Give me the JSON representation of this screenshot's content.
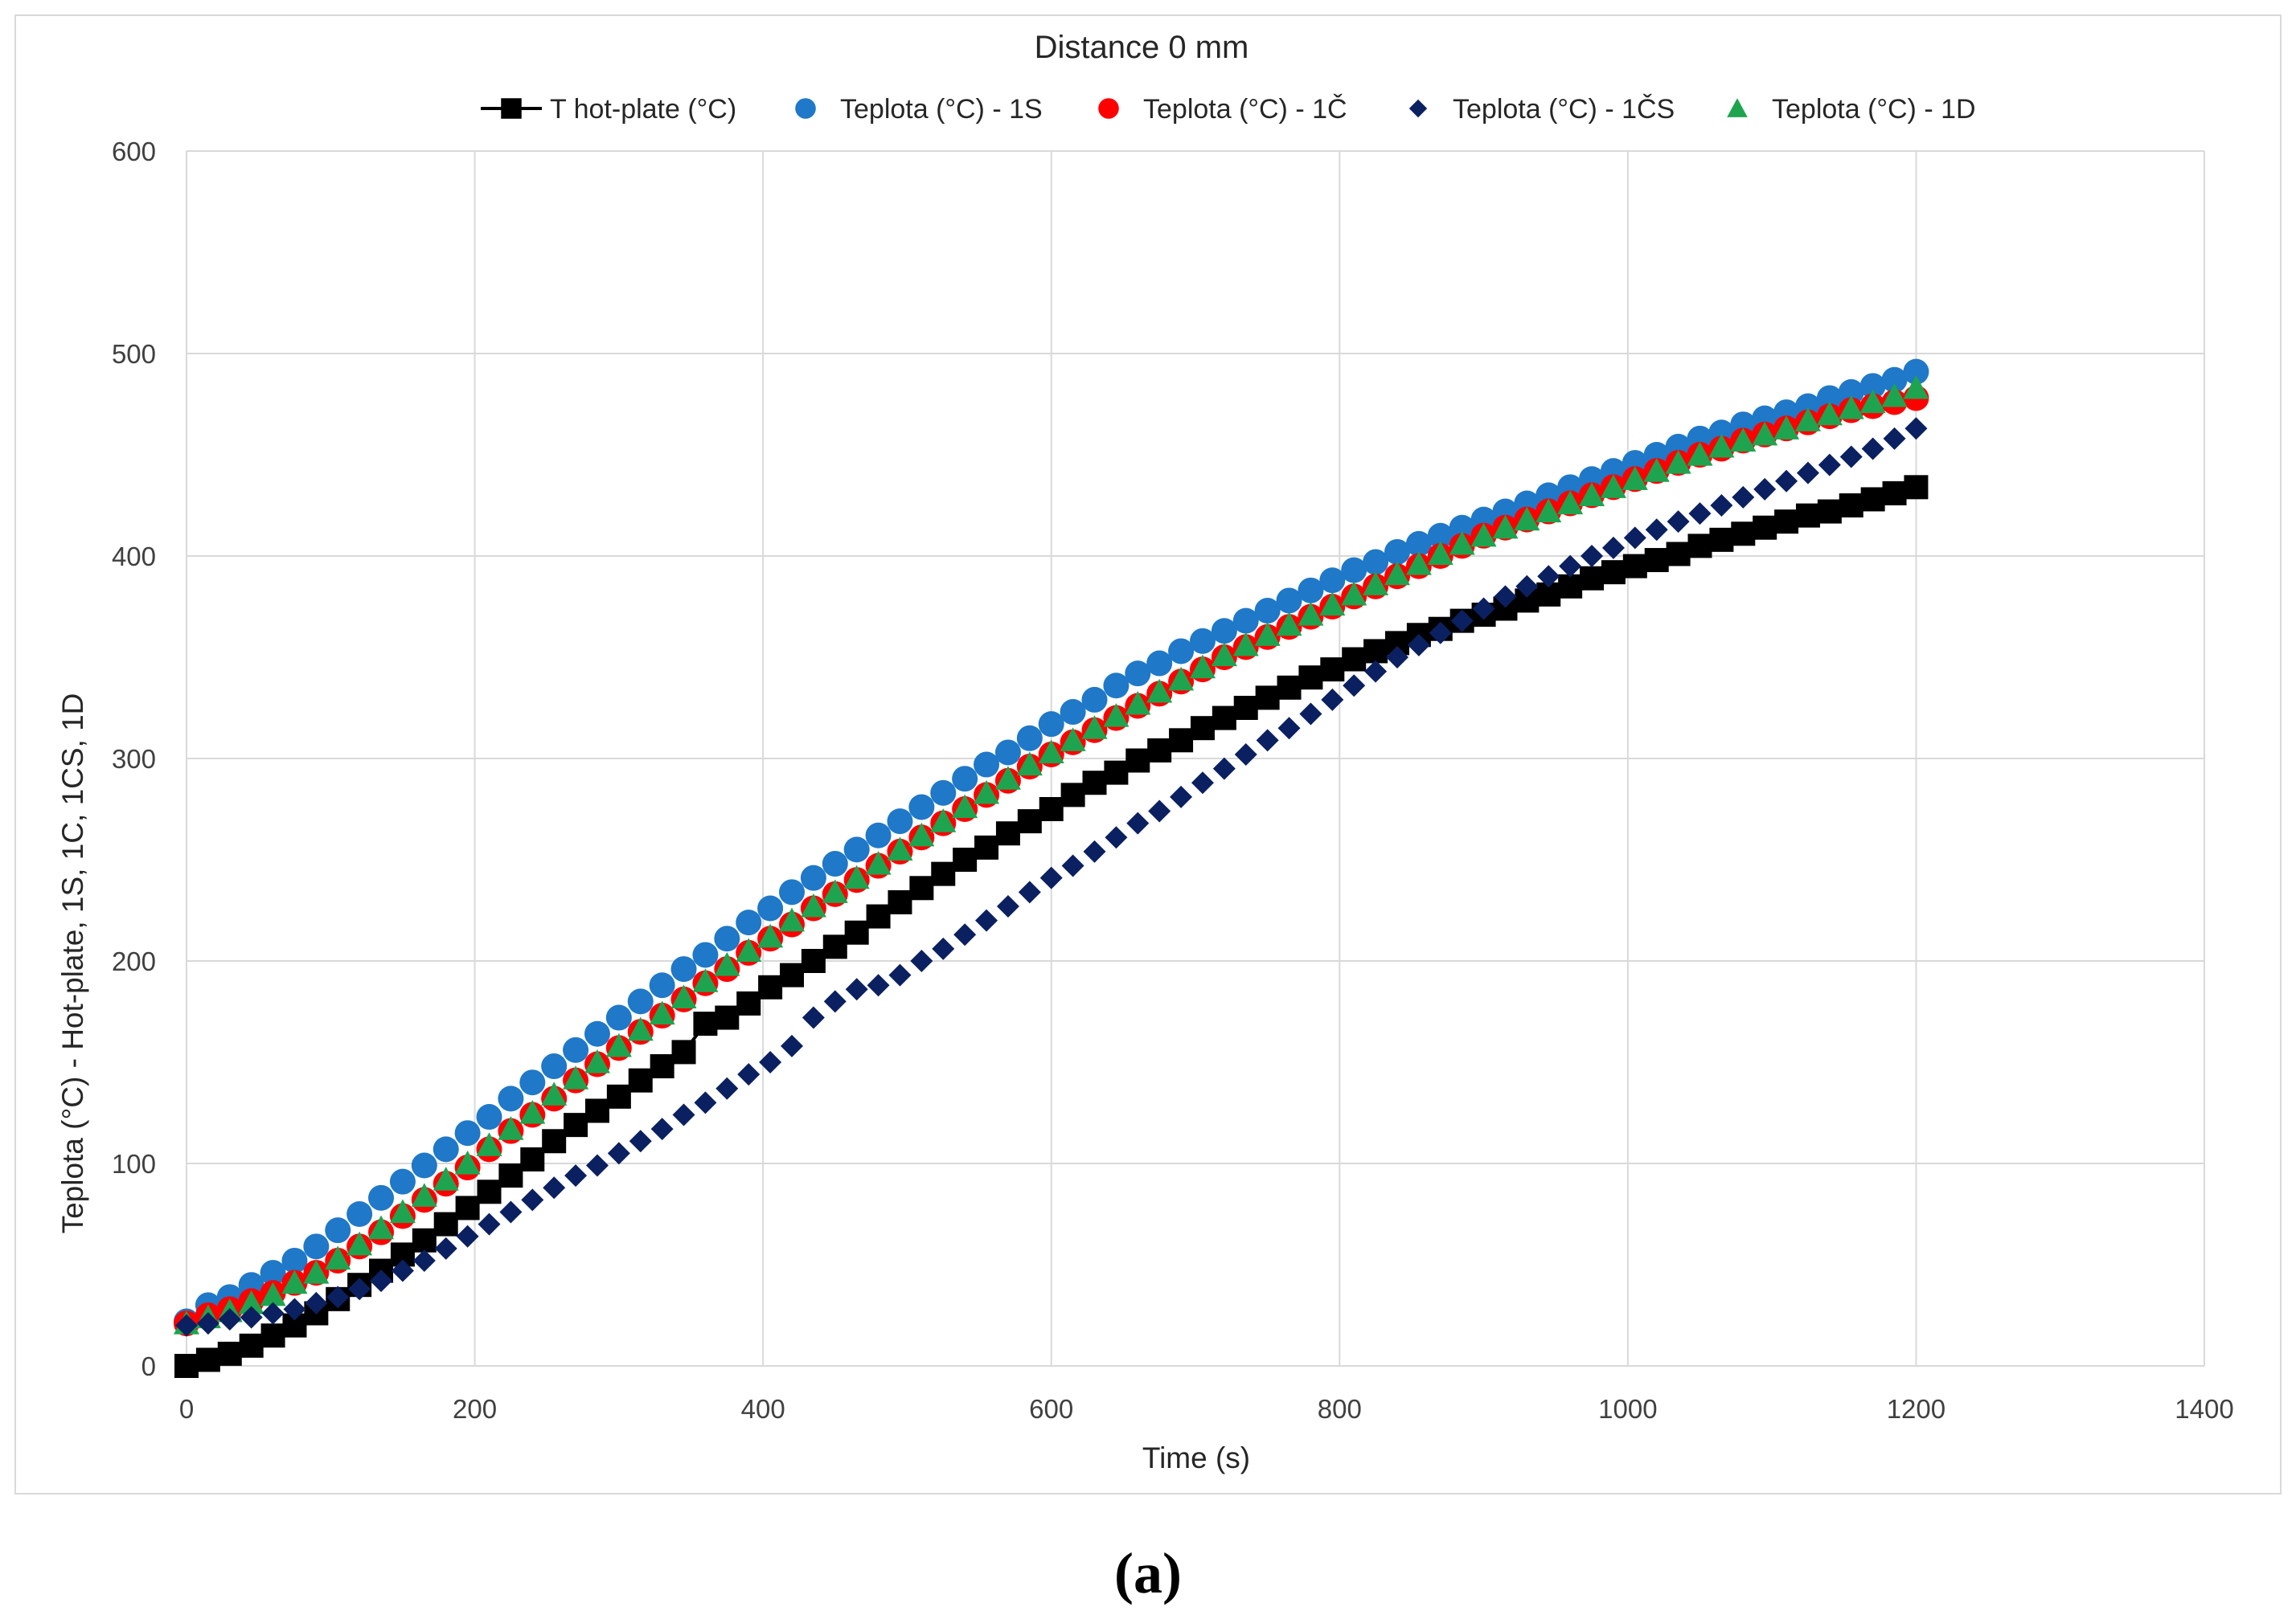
{
  "panel_label": "(a)",
  "chart_data": {
    "type": "scatter",
    "title": "Distance 0 mm",
    "xlabel": "Time (s)",
    "ylabel": "Teplota (°C) - Hot-plate, 1S, 1C, 1CS, 1D",
    "xlim": [
      0,
      1400
    ],
    "ylim": [
      0,
      600
    ],
    "xticks": [
      "0",
      "200",
      "400",
      "600",
      "800",
      "1000",
      "1200",
      "1400"
    ],
    "yticks": [
      "0",
      "100",
      "200",
      "300",
      "400",
      "500",
      "600"
    ],
    "grid": true,
    "legend_position": "top",
    "x": [
      0,
      15,
      30,
      45,
      60,
      75,
      90,
      105,
      120,
      135,
      150,
      165,
      180,
      195,
      210,
      225,
      240,
      255,
      270,
      285,
      300,
      315,
      330,
      345,
      360,
      375,
      390,
      405,
      420,
      435,
      450,
      465,
      480,
      495,
      510,
      525,
      540,
      555,
      570,
      585,
      600,
      615,
      630,
      645,
      660,
      675,
      690,
      705,
      720,
      735,
      750,
      765,
      780,
      795,
      810,
      825,
      840,
      855,
      870,
      885,
      900,
      915,
      930,
      945,
      960,
      975,
      990,
      1005,
      1020,
      1035,
      1050,
      1065,
      1080,
      1095,
      1110,
      1125,
      1140,
      1155,
      1170,
      1185,
      1200
    ],
    "series": [
      {
        "name": "T hot-plate (°C)",
        "color": "#000000",
        "marker": "square",
        "values": [
          0,
          3,
          6,
          10,
          15,
          20,
          26,
          33,
          40,
          47,
          55,
          62,
          70,
          78,
          86,
          94,
          102,
          111,
          119,
          126,
          133,
          141,
          148,
          155,
          169,
          172,
          179,
          187,
          193,
          200,
          207,
          214,
          222,
          229,
          236,
          243,
          250,
          256,
          263,
          269,
          275,
          282,
          288,
          293,
          299,
          304,
          309,
          315,
          320,
          325,
          330,
          335,
          340,
          344,
          349,
          353,
          357,
          361,
          364,
          368,
          371,
          374,
          378,
          381,
          385,
          389,
          392,
          395,
          398,
          401,
          405,
          408,
          411,
          414,
          417,
          420,
          422,
          425,
          428,
          431,
          434
        ]
      },
      {
        "name": "Teplota (°C) - 1S",
        "color": "#1f78c8",
        "marker": "circle",
        "values": [
          22,
          30,
          34,
          40,
          46,
          52,
          59,
          67,
          75,
          83,
          91,
          99,
          107,
          115,
          123,
          132,
          140,
          148,
          156,
          164,
          172,
          180,
          188,
          196,
          203,
          211,
          219,
          226,
          234,
          241,
          248,
          255,
          262,
          269,
          276,
          283,
          290,
          297,
          303,
          310,
          317,
          323,
          329,
          336,
          342,
          347,
          353,
          358,
          363,
          368,
          373,
          378,
          383,
          388,
          393,
          397,
          402,
          406,
          410,
          414,
          418,
          422,
          426,
          430,
          434,
          438,
          442,
          446,
          450,
          454,
          458,
          461,
          465,
          468,
          471,
          474,
          478,
          481,
          484,
          487,
          491
        ]
      },
      {
        "name": "Teplota (°C) - 1Č",
        "color": "#ff0000",
        "marker": "circle",
        "values": [
          21,
          25,
          28,
          32,
          36,
          41,
          46,
          52,
          59,
          66,
          74,
          82,
          90,
          98,
          107,
          116,
          124,
          132,
          141,
          149,
          157,
          165,
          173,
          181,
          189,
          196,
          204,
          211,
          218,
          226,
          233,
          240,
          247,
          254,
          261,
          268,
          275,
          282,
          289,
          296,
          302,
          308,
          314,
          320,
          326,
          332,
          338,
          344,
          350,
          355,
          360,
          365,
          370,
          375,
          380,
          385,
          390,
          395,
          400,
          405,
          410,
          414,
          418,
          422,
          426,
          430,
          434,
          438,
          442,
          446,
          450,
          453,
          457,
          460,
          463,
          466,
          469,
          472,
          474,
          476,
          478
        ]
      },
      {
        "name": "Teplota (°C) - 1ČS",
        "color": "#0b2060",
        "marker": "diamond",
        "values": [
          20,
          21,
          23,
          24,
          26,
          28,
          31,
          34,
          38,
          42,
          47,
          52,
          58,
          64,
          70,
          76,
          82,
          88,
          94,
          99,
          105,
          111,
          117,
          124,
          130,
          137,
          144,
          150,
          158,
          172,
          180,
          186,
          188,
          193,
          200,
          206,
          213,
          220,
          227,
          234,
          241,
          247,
          254,
          261,
          268,
          274,
          281,
          288,
          295,
          302,
          309,
          315,
          322,
          329,
          336,
          343,
          350,
          356,
          362,
          368,
          374,
          380,
          385,
          390,
          395,
          400,
          404,
          409,
          413,
          417,
          421,
          425,
          429,
          433,
          437,
          441,
          445,
          449,
          453,
          458,
          463
        ]
      },
      {
        "name": "Teplota (°C) - 1D",
        "color": "#1ea44e",
        "marker": "triangle",
        "values": [
          21,
          24,
          27,
          31,
          35,
          41,
          46,
          53,
          60,
          68,
          76,
          84,
          92,
          100,
          109,
          117,
          125,
          134,
          142,
          150,
          158,
          166,
          174,
          182,
          190,
          198,
          205,
          212,
          220,
          227,
          234,
          241,
          248,
          255,
          262,
          269,
          276,
          283,
          290,
          297,
          303,
          309,
          315,
          321,
          327,
          333,
          339,
          345,
          351,
          356,
          361,
          366,
          371,
          376,
          381,
          386,
          391,
          396,
          401,
          406,
          410,
          414,
          418,
          422,
          426,
          430,
          434,
          438,
          442,
          446,
          450,
          454,
          457,
          460,
          463,
          467,
          470,
          473,
          476,
          479,
          483
        ]
      }
    ]
  }
}
